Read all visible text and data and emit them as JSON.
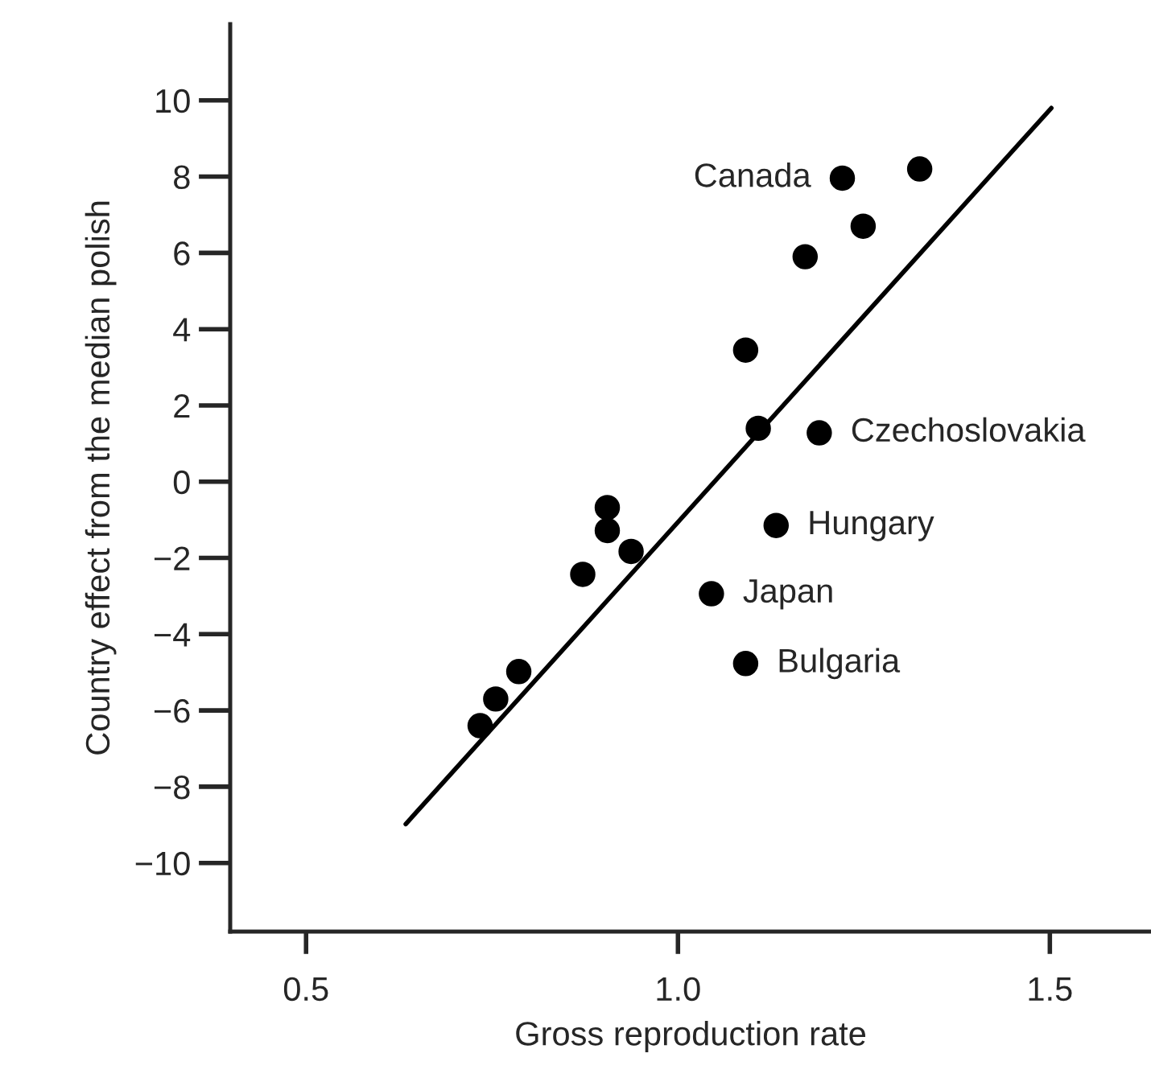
{
  "chart_data": {
    "type": "scatter",
    "xlabel": "Gross reproduction rate",
    "ylabel": "Country effect from the median polish",
    "series": [
      {
        "color": "#000000",
        "marker": "circle",
        "x": [
          1.221,
          1.325,
          1.249,
          1.171,
          1.091,
          1.108,
          1.19,
          0.905,
          0.905,
          0.937,
          0.872,
          1.132,
          1.045,
          1.091,
          0.786,
          0.755,
          0.734
        ],
        "values": [
          7.96,
          8.2,
          6.7,
          5.9,
          3.45,
          1.4,
          1.28,
          -0.68,
          -1.28,
          -1.83,
          -2.43,
          -1.15,
          -2.94,
          -4.77,
          -4.98,
          -5.7,
          -6.4
        ]
      },
      {
        "type": "line",
        "marker": "none",
        "color": "#000000",
        "x": [
          0.634,
          1.502
        ],
        "values": [
          -8.98,
          9.8
        ]
      }
    ],
    "annotations": [
      {
        "text": "Canada",
        "x": 1.221,
        "y": 7.96
      },
      {
        "text": "Czechoslovakia",
        "x": 1.19,
        "y": 1.28
      },
      {
        "text": "Hungary",
        "x": 1.132,
        "y": -1.15
      },
      {
        "text": "Japan",
        "x": 1.045,
        "y": -2.94
      },
      {
        "text": "Bulgaria",
        "x": 1.091,
        "y": -4.77
      }
    ],
    "xlim": [
      0.398,
      1.636
    ],
    "ylim": [
      -11.8,
      12
    ],
    "xticks": [
      {
        "value": 0.5,
        "label": "0.5"
      },
      {
        "value": 1.0,
        "label": "1.0"
      },
      {
        "value": 1.5,
        "label": "1.5"
      }
    ],
    "yticks": [
      {
        "value": 10,
        "label": "10"
      },
      8,
      6,
      4,
      2,
      0,
      {
        "value": -2,
        "label": "−2"
      },
      {
        "value": -4,
        "label": "−4"
      },
      {
        "value": -6,
        "label": "−6"
      },
      {
        "value": -8,
        "label": "−8"
      },
      {
        "value": -10,
        "label": "−10"
      }
    ],
    "grid": false,
    "legend": false
  }
}
